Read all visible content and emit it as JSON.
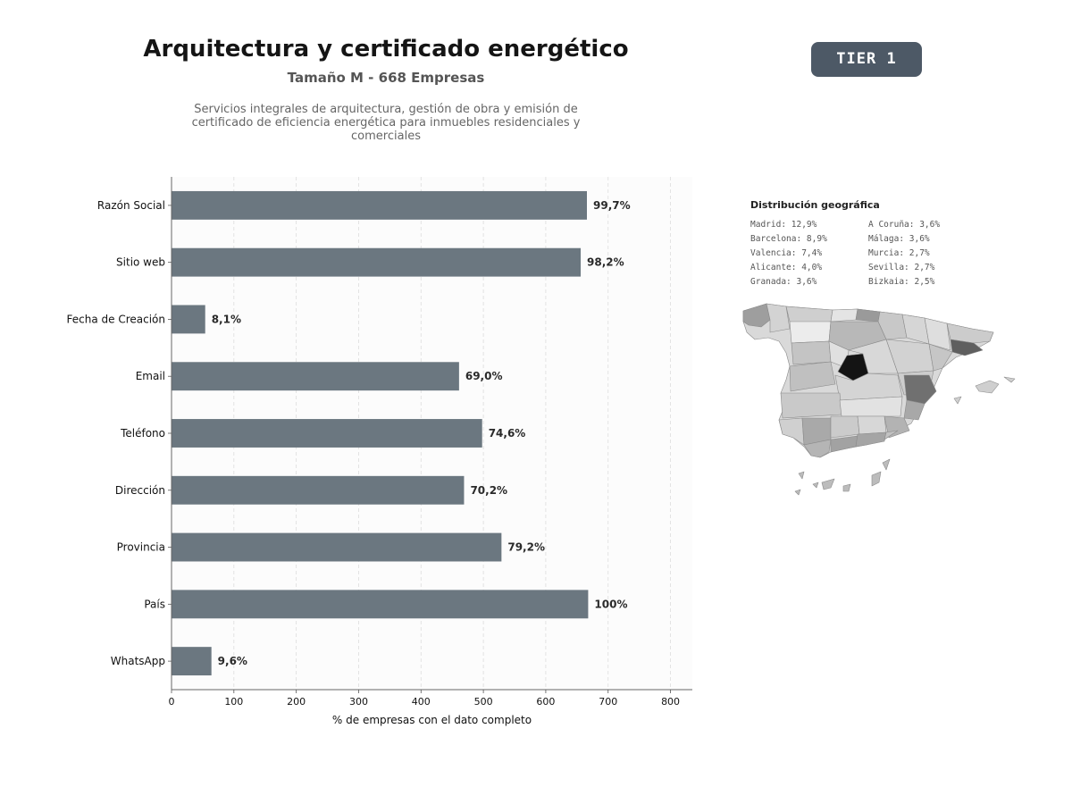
{
  "header": {
    "title": "Arquitectura y certificado energético",
    "subtitle": "Tamaño M - 668 Empresas",
    "description": "Servicios integrales de arquitectura, gestión de obra y emisión de certificado de eficiencia energética para inmuebles residenciales y comerciales",
    "badge": "TIER 1"
  },
  "chart_data": {
    "type": "bar",
    "orientation": "horizontal",
    "categories": [
      "Razón Social",
      "Sitio web",
      "Fecha de Creación",
      "Email",
      "Teléfono",
      "Dirección",
      "Provincia",
      "País",
      "WhatsApp"
    ],
    "values": [
      666,
      656,
      54,
      461,
      498,
      469,
      529,
      668,
      64
    ],
    "data_labels": [
      "99,7%",
      "98,2%",
      "8,1%",
      "69,0%",
      "74,6%",
      "70,2%",
      "79,2%",
      "100%",
      "9,6%"
    ],
    "xlabel": "% de empresas con el dato completo",
    "ylabel": "",
    "xlim": [
      0,
      835
    ],
    "xticks": [
      0,
      100,
      200,
      300,
      400,
      500,
      600,
      700,
      800
    ],
    "grid": true,
    "bar_color": "#6b7780"
  },
  "geo": {
    "title": "Distribución geográfica",
    "items": [
      "Madrid: 12,9%",
      "A Coruña: 3,6%",
      "Barcelona: 8,9%",
      "Málaga: 3,6%",
      "Valencia: 7,4%",
      "Murcia: 2,7%",
      "Alicante: 4,0%",
      "Sevilla: 2,7%",
      "Granada: 3,6%",
      "Bizkaia: 2,5%"
    ]
  }
}
